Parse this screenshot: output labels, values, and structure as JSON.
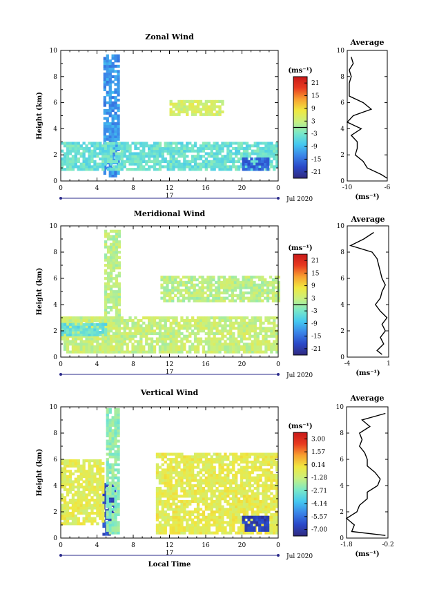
{
  "figure": {
    "xlabel": "Local Time",
    "date_label": "Jul 2020",
    "day_label": "17",
    "ylabel": "Height (km)",
    "avg_title": "Average",
    "unit": "(ms⁻¹)",
    "x_ticks": [
      "0",
      "4",
      "8",
      "12",
      "16",
      "20",
      "0"
    ],
    "y_ticks": [
      "0",
      "2",
      "4",
      "6",
      "8",
      "10"
    ]
  },
  "chart_data": [
    {
      "type": "heatmap",
      "title": "Zonal Wind",
      "ylabel": "Height (km)",
      "xlim": [
        0,
        24
      ],
      "ylim": [
        0,
        10
      ],
      "colorbar_unit": "(ms⁻¹)",
      "colorbar_ticks": [
        "21",
        "15",
        "9",
        "3",
        "-3",
        "-9",
        "-15",
        "-21"
      ],
      "colorbar_range": [
        -24,
        24
      ],
      "colormap_stops": [
        "#302a7f",
        "#2a48c8",
        "#3a84e8",
        "#44c8f0",
        "#7ae8c8",
        "#c8f080",
        "#f0e840",
        "#f8a030",
        "#e83a20",
        "#c81818"
      ],
      "regions": [
        {
          "name": "convective column",
          "x": [
            4.7,
            6.2
          ],
          "y": [
            0.3,
            9.6
          ],
          "value": -12
        },
        {
          "name": "low-level band",
          "x": [
            0,
            24
          ],
          "y": [
            0.8,
            3.0
          ],
          "value": -4
        },
        {
          "name": "mid-level patch",
          "x": [
            12,
            18
          ],
          "y": [
            5.0,
            6.2
          ],
          "value": 4
        },
        {
          "name": "lower easterly patch",
          "x": [
            20,
            23
          ],
          "y": [
            0.8,
            1.6
          ],
          "value": -16
        }
      ],
      "average_profile": {
        "xlim": [
          -10,
          -6
        ],
        "x_ticks": [
          "-10",
          "-6"
        ],
        "xlabel": "(ms⁻¹)",
        "height": [
          0.2,
          0.5,
          1.0,
          1.5,
          2.0,
          2.5,
          3.0,
          3.5,
          4.0,
          4.5,
          5.0,
          5.5,
          6.0,
          6.5,
          7.0,
          7.5,
          8.0,
          8.5,
          9.0,
          9.5
        ],
        "values": [
          -6.0,
          -6.6,
          -8.0,
          -8.4,
          -9.2,
          -9.0,
          -9.0,
          -9.6,
          -8.6,
          -10.0,
          -9.4,
          -7.6,
          -8.4,
          -9.8,
          -9.8,
          -9.8,
          -9.6,
          -9.8,
          -9.4,
          -9.6
        ]
      }
    },
    {
      "type": "heatmap",
      "title": "Meridional Wind",
      "ylabel": "Height (km)",
      "xlim": [
        0,
        24
      ],
      "ylim": [
        0,
        10
      ],
      "colorbar_unit": "(ms⁻¹)",
      "colorbar_ticks": [
        "21",
        "15",
        "9",
        "3",
        "-3",
        "-9",
        "-15",
        "-21"
      ],
      "colorbar_range": [
        -24,
        24
      ],
      "colormap_stops": [
        "#302a7f",
        "#2a48c8",
        "#3a84e8",
        "#44c8f0",
        "#7ae8c8",
        "#c8f080",
        "#f0e840",
        "#f8a030",
        "#e83a20",
        "#c81818"
      ],
      "regions": [
        {
          "name": "convective column",
          "x": [
            4.8,
            6.4
          ],
          "y": [
            0.3,
            9.6
          ],
          "value": 2
        },
        {
          "name": "low-level band",
          "x": [
            0,
            24
          ],
          "y": [
            0.3,
            3.0
          ],
          "value": 3
        },
        {
          "name": "western band",
          "x": [
            0,
            5
          ],
          "y": [
            1.6,
            2.6
          ],
          "value": -4
        },
        {
          "name": "mid-level patch",
          "x": [
            11,
            24
          ],
          "y": [
            4.2,
            6.1
          ],
          "value": 2
        }
      ],
      "average_profile": {
        "xlim": [
          -4,
          1
        ],
        "x_ticks": [
          "-4",
          "1"
        ],
        "xlabel": "(ms⁻¹)",
        "height": [
          0.2,
          0.5,
          1.0,
          1.5,
          2.0,
          2.5,
          3.0,
          3.5,
          4.0,
          4.5,
          5.0,
          5.5,
          6.0,
          6.5,
          7.0,
          7.5,
          8.0,
          8.5,
          9.0,
          9.5
        ],
        "values": [
          0.2,
          -0.4,
          0.4,
          0.0,
          0.6,
          0.2,
          0.8,
          0.0,
          -0.6,
          0.0,
          0.2,
          0.6,
          0.2,
          0.0,
          -0.2,
          -0.4,
          -1.0,
          -3.6,
          -2.0,
          -0.8
        ]
      }
    },
    {
      "type": "heatmap",
      "title": "Vertical Wind",
      "ylabel": "Height (km)",
      "xlabel": "Local Time",
      "xlim": [
        0,
        24
      ],
      "ylim": [
        0,
        10
      ],
      "colorbar_unit": "(ms⁻¹)",
      "colorbar_ticks": [
        "3.00",
        "1.57",
        "0.14",
        "-1.28",
        "-2.71",
        "-4.14",
        "-5.57",
        "-7.00"
      ],
      "colorbar_range": [
        -7.7,
        3.7
      ],
      "colormap_stops": [
        "#302a7f",
        "#2a48c8",
        "#3a84e8",
        "#44c8f0",
        "#7ae8c8",
        "#c8f080",
        "#f0e840",
        "#f8a030",
        "#e83a20",
        "#c81818"
      ],
      "regions": [
        {
          "name": "downdraft core",
          "x": [
            4.6,
            5.8
          ],
          "y": [
            0.2,
            4.2
          ],
          "value": -6.5
        },
        {
          "name": "updraft column",
          "x": [
            5.0,
            6.4
          ],
          "y": [
            0.3,
            9.8
          ],
          "value": -2.3
        },
        {
          "name": "western cloud layer",
          "x": [
            0,
            4.5
          ],
          "y": [
            1.0,
            6.0
          ],
          "value": -0.6
        },
        {
          "name": "eastern cloud layer",
          "x": [
            10.5,
            24
          ],
          "y": [
            0.3,
            6.5
          ],
          "value": -0.5
        },
        {
          "name": "lower downdraft patch",
          "x": [
            20,
            23
          ],
          "y": [
            0.5,
            1.6
          ],
          "value": -6.8
        }
      ],
      "average_profile": {
        "xlim": [
          -1.8,
          -0.2
        ],
        "x_ticks": [
          "-1.8",
          "-0.2"
        ],
        "xlabel": "(ms⁻¹)",
        "height": [
          0.2,
          0.5,
          1.0,
          1.5,
          2.0,
          2.5,
          3.0,
          3.5,
          4.0,
          4.5,
          5.0,
          5.5,
          6.0,
          6.5,
          7.0,
          7.5,
          8.0,
          8.5,
          9.0,
          9.5
        ],
        "values": [
          -0.3,
          -1.6,
          -1.5,
          -1.8,
          -1.4,
          -1.3,
          -1.0,
          -1.0,
          -0.6,
          -0.5,
          -0.7,
          -1.0,
          -1.0,
          -1.1,
          -1.3,
          -1.2,
          -1.3,
          -0.9,
          -1.2,
          -0.3
        ]
      }
    }
  ]
}
